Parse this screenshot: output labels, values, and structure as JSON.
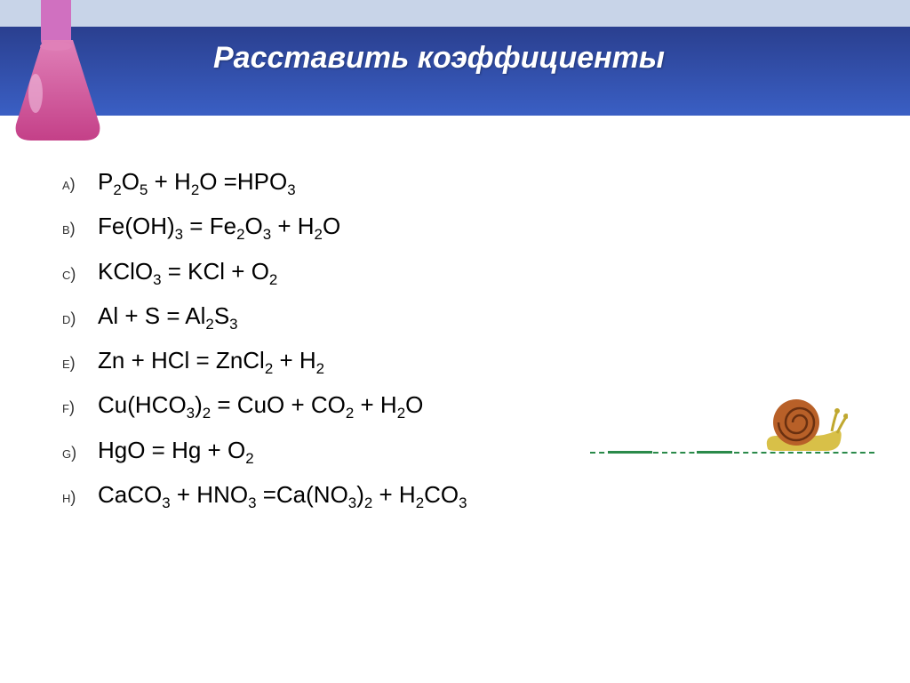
{
  "title": "Расставить коэффициенты",
  "header": {
    "top_color": "#c8d4e8",
    "gradient_from": "#2a3f8f",
    "gradient_to": "#3a5fc4",
    "title_color": "#ffffff"
  },
  "flask": {
    "neck_color": "#d070c0",
    "body_color": "#c44088",
    "liquid_top": "#e080b8",
    "highlight": "#f0c0e0"
  },
  "equations": [
    {
      "label": "A)",
      "formula": "P<sub>2</sub>O<sub>5</sub> + H<sub>2</sub>O =HPO<sub>3</sub>"
    },
    {
      "label": "B)",
      "formula": "Fe(OH)<sub>3</sub> = Fe<sub>2</sub>O<sub>3</sub> + H<sub>2</sub>O"
    },
    {
      "label": "C)",
      "formula": "KClO<sub>3</sub> = KCl + O<sub>2</sub>"
    },
    {
      "label": "D)",
      "formula": "Al + S = Al<sub>2</sub>S<sub>3</sub>"
    },
    {
      "label": "E)",
      "formula": "Zn + HCl = ZnCl<sub>2</sub> + H<sub>2</sub>"
    },
    {
      "label": "F)",
      "formula": "Cu(HCO<sub>3</sub>)<sub>2</sub> = CuO + CO<sub>2</sub> + H<sub>2</sub>O"
    },
    {
      "label": "G)",
      "formula": "HgO = Hg + O<sub>2</sub>"
    },
    {
      "label": "H)",
      "formula": "CaCO<sub>3</sub> + HNO<sub>3</sub> =Ca(NO<sub>3</sub>)<sub>2</sub> + H<sub>2</sub>CO<sub>3</sub>"
    }
  ],
  "snail": {
    "shell_color": "#b86028",
    "shell_dark": "#6a3010",
    "body_color": "#d8c048",
    "eye_stalk": "#c0a830",
    "trail_color": "#2a8a4a"
  },
  "background_color": "#ffffff",
  "text_color": "#000000"
}
